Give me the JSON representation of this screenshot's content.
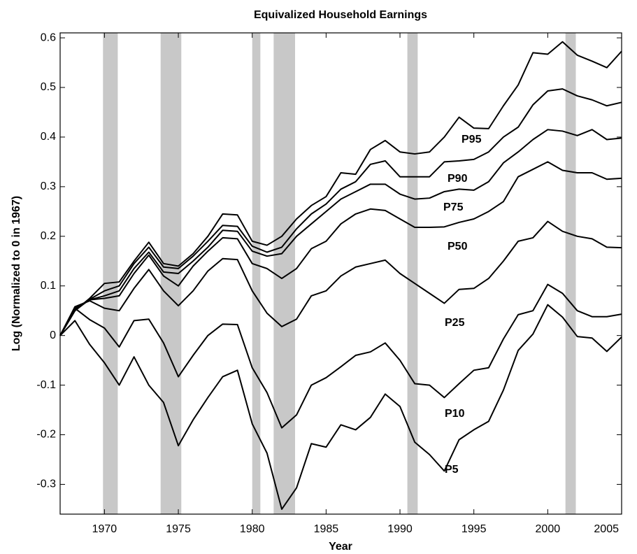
{
  "chart_data": {
    "type": "line",
    "title": "Equivalized Household Earnings",
    "xlabel": "Year",
    "ylabel": "Log (Normalized to 0 in 1967)",
    "x": [
      1967,
      1968,
      1969,
      1970,
      1971,
      1972,
      1973,
      1974,
      1975,
      1976,
      1977,
      1978,
      1979,
      1980,
      1981,
      1982,
      1983,
      1984,
      1985,
      1986,
      1987,
      1988,
      1989,
      1990,
      1991,
      1992,
      1993,
      1994,
      1995,
      1996,
      1997,
      1998,
      1999,
      2000,
      2001,
      2002,
      2003,
      2004,
      2005
    ],
    "series": [
      {
        "name": "P95",
        "color": "#000000",
        "values": [
          0,
          0.05,
          0.075,
          0.105,
          0.108,
          0.15,
          0.188,
          0.145,
          0.14,
          0.165,
          0.2,
          0.245,
          0.243,
          0.19,
          0.182,
          0.2,
          0.235,
          0.262,
          0.28,
          0.328,
          0.325,
          0.375,
          0.393,
          0.37,
          0.366,
          0.37,
          0.4,
          0.44,
          0.418,
          0.417,
          0.463,
          0.505,
          0.57,
          0.567,
          0.592,
          0.565,
          0.553,
          0.54,
          0.573
        ]
      },
      {
        "name": "P90",
        "color": "#000000",
        "values": [
          0,
          0.05,
          0.073,
          0.09,
          0.1,
          0.145,
          0.178,
          0.138,
          0.135,
          0.16,
          0.19,
          0.222,
          0.22,
          0.18,
          0.168,
          0.178,
          0.215,
          0.245,
          0.265,
          0.295,
          0.31,
          0.345,
          0.352,
          0.32,
          0.32,
          0.32,
          0.35,
          0.352,
          0.355,
          0.37,
          0.4,
          0.42,
          0.465,
          0.493,
          0.497,
          0.483,
          0.475,
          0.463,
          0.47
        ]
      },
      {
        "name": "P75",
        "color": "#000000",
        "values": [
          0,
          0.052,
          0.072,
          0.08,
          0.09,
          0.135,
          0.168,
          0.128,
          0.125,
          0.15,
          0.178,
          0.212,
          0.21,
          0.17,
          0.16,
          0.165,
          0.2,
          0.225,
          0.25,
          0.275,
          0.29,
          0.305,
          0.305,
          0.285,
          0.275,
          0.277,
          0.29,
          0.295,
          0.293,
          0.31,
          0.348,
          0.37,
          0.395,
          0.415,
          0.412,
          0.403,
          0.415,
          0.395,
          0.398
        ]
      },
      {
        "name": "P50",
        "color": "#000000",
        "values": [
          0,
          0.055,
          0.072,
          0.075,
          0.08,
          0.125,
          0.162,
          0.12,
          0.1,
          0.14,
          0.17,
          0.197,
          0.195,
          0.145,
          0.135,
          0.115,
          0.135,
          0.175,
          0.19,
          0.225,
          0.245,
          0.255,
          0.252,
          0.235,
          0.218,
          0.218,
          0.219,
          0.228,
          0.235,
          0.25,
          0.27,
          0.32,
          0.335,
          0.35,
          0.333,
          0.328,
          0.328,
          0.315,
          0.317
        ]
      },
      {
        "name": "P25",
        "color": "#000000",
        "values": [
          0,
          0.058,
          0.07,
          0.055,
          0.05,
          0.095,
          0.133,
          0.09,
          0.06,
          0.09,
          0.13,
          0.155,
          0.153,
          0.09,
          0.045,
          0.018,
          0.033,
          0.08,
          0.09,
          0.12,
          0.138,
          0.145,
          0.152,
          0.125,
          0.105,
          0.085,
          0.065,
          0.093,
          0.095,
          0.115,
          0.15,
          0.19,
          0.197,
          0.23,
          0.21,
          0.2,
          0.195,
          0.178,
          0.177
        ]
      },
      {
        "name": "P10",
        "color": "#000000",
        "values": [
          0,
          0.055,
          0.032,
          0.015,
          -0.023,
          0.03,
          0.033,
          -0.015,
          -0.083,
          -0.04,
          0.0,
          0.023,
          0.022,
          -0.065,
          -0.115,
          -0.186,
          -0.16,
          -0.1,
          -0.085,
          -0.063,
          -0.04,
          -0.033,
          -0.015,
          -0.05,
          -0.097,
          -0.1,
          -0.125,
          -0.097,
          -0.07,
          -0.065,
          -0.007,
          0.042,
          0.05,
          0.103,
          0.085,
          0.05,
          0.038,
          0.038,
          0.043
        ]
      },
      {
        "name": "P5",
        "color": "#000000",
        "values": [
          0,
          0.03,
          -0.018,
          -0.055,
          -0.1,
          -0.043,
          -0.1,
          -0.135,
          -0.222,
          -0.17,
          -0.125,
          -0.083,
          -0.07,
          -0.178,
          -0.237,
          -0.35,
          -0.307,
          -0.218,
          -0.225,
          -0.18,
          -0.19,
          -0.165,
          -0.118,
          -0.143,
          -0.215,
          -0.24,
          -0.273,
          -0.21,
          -0.19,
          -0.173,
          -0.11,
          -0.03,
          0.003,
          0.062,
          0.037,
          -0.002,
          -0.005,
          -0.032,
          -0.003
        ]
      }
    ],
    "shaded_periods": [
      [
        1969.9,
        1970.9
      ],
      [
        1973.8,
        1975.2
      ],
      [
        1980.0,
        1980.55
      ],
      [
        1981.45,
        1982.9
      ],
      [
        1990.5,
        1991.2
      ],
      [
        2001.2,
        2001.9
      ]
    ],
    "shade_color": "#c8c8c8",
    "xlim": [
      1967,
      2005
    ],
    "xticks": [
      1970,
      1975,
      1980,
      1985,
      1990,
      1995,
      2000,
      2005
    ],
    "ylim": [
      -0.36,
      0.61
    ],
    "yticks": [
      -0.3,
      -0.2,
      -0.1,
      0,
      0.1,
      0.2,
      0.3,
      0.4,
      0.5,
      0.6
    ],
    "grid": false
  }
}
